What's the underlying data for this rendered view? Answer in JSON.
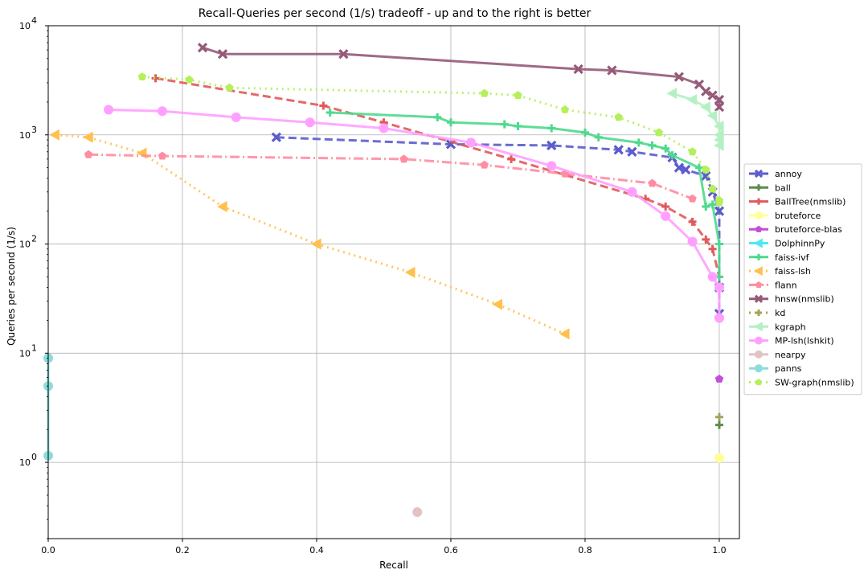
{
  "chart_data": {
    "type": "line",
    "title": "Recall-Queries per second (1/s) tradeoff - up and to the right is better",
    "xlabel": "Recall",
    "ylabel": "Queries per second (1/s)",
    "xlim": [
      0.0,
      1.03
    ],
    "ylim": [
      0.2,
      10000
    ],
    "yscale": "log",
    "grid": true,
    "legend_position": "right",
    "x_ticks": [
      "0.0",
      "0.2",
      "0.4",
      "0.6",
      "0.8",
      "1.0"
    ],
    "y_ticks": [
      {
        "base": "10",
        "exp": "0"
      },
      {
        "base": "10",
        "exp": "1"
      },
      {
        "base": "10",
        "exp": "2"
      },
      {
        "base": "10",
        "exp": "3"
      },
      {
        "base": "10",
        "exp": "4"
      }
    ],
    "series": [
      {
        "name": "annoy",
        "color": "#5a5ccc",
        "marker": "x",
        "dash": "dashed",
        "points": [
          [
            0.34,
            950
          ],
          [
            0.6,
            820
          ],
          [
            0.75,
            800
          ],
          [
            0.85,
            730
          ],
          [
            0.87,
            700
          ],
          [
            0.93,
            620
          ],
          [
            0.94,
            500
          ],
          [
            0.95,
            480
          ],
          [
            0.98,
            420
          ],
          [
            0.99,
            300
          ],
          [
            1.0,
            200
          ],
          [
            1.0,
            40
          ],
          [
            1.0,
            23
          ]
        ]
      },
      {
        "name": "ball",
        "color": "#5c8a4e",
        "marker": "plus",
        "dash": "solid",
        "points": [
          [
            1.0,
            2.2
          ]
        ]
      },
      {
        "name": "BallTree(nmslib)",
        "color": "#e05a5a",
        "marker": "plus",
        "dash": "dashed",
        "points": [
          [
            0.16,
            3300
          ],
          [
            0.41,
            1850
          ],
          [
            0.5,
            1300
          ],
          [
            0.69,
            600
          ],
          [
            0.89,
            260
          ],
          [
            0.92,
            220
          ],
          [
            0.96,
            160
          ],
          [
            0.98,
            110
          ],
          [
            0.99,
            90
          ],
          [
            1.0,
            50
          ]
        ]
      },
      {
        "name": "bruteforce",
        "color": "#ffff99",
        "marker": "circle",
        "dash": "solid",
        "points": [
          [
            1.0,
            1.1
          ]
        ]
      },
      {
        "name": "bruteforce-blas",
        "color": "#c24ed9",
        "marker": "pentagon",
        "dash": "dashed",
        "points": [
          [
            1.0,
            5.8
          ]
        ]
      },
      {
        "name": "DolphinnPy",
        "color": "#4ee9f0",
        "marker": "triangle",
        "dash": "solid",
        "points": []
      },
      {
        "name": "faiss-ivf",
        "color": "#4ed98c",
        "marker": "plus",
        "dash": "solid",
        "points": [
          [
            0.42,
            1600
          ],
          [
            0.58,
            1450
          ],
          [
            0.6,
            1300
          ],
          [
            0.68,
            1250
          ],
          [
            0.7,
            1200
          ],
          [
            0.75,
            1150
          ],
          [
            0.8,
            1050
          ],
          [
            0.82,
            950
          ],
          [
            0.88,
            850
          ],
          [
            0.9,
            800
          ],
          [
            0.92,
            750
          ],
          [
            0.93,
            650
          ],
          [
            0.97,
            500
          ],
          [
            0.98,
            220
          ],
          [
            0.99,
            230
          ],
          [
            1.0,
            100
          ],
          [
            1.0,
            50
          ]
        ]
      },
      {
        "name": "faiss-lsh",
        "color": "#ffc04e",
        "marker": "triangle",
        "dash": "dotted",
        "points": [
          [
            0.01,
            1000
          ],
          [
            0.06,
            950
          ],
          [
            0.14,
            680
          ],
          [
            0.26,
            220
          ],
          [
            0.4,
            100
          ],
          [
            0.54,
            55
          ],
          [
            0.67,
            28
          ],
          [
            0.77,
            15
          ]
        ]
      },
      {
        "name": "flann",
        "color": "#ff8ca0",
        "marker": "pentagon",
        "dash": "dashdot",
        "points": [
          [
            0.06,
            660
          ],
          [
            0.17,
            640
          ],
          [
            0.53,
            600
          ],
          [
            0.65,
            530
          ],
          [
            0.77,
            440
          ],
          [
            0.9,
            360
          ],
          [
            0.96,
            260
          ]
        ]
      },
      {
        "name": "hnsw(nmslib)",
        "color": "#945a78",
        "marker": "x",
        "dash": "solid",
        "points": [
          [
            0.23,
            6300
          ],
          [
            0.26,
            5500
          ],
          [
            0.44,
            5500
          ],
          [
            0.79,
            4000
          ],
          [
            0.84,
            3900
          ],
          [
            0.94,
            3400
          ],
          [
            0.97,
            2900
          ],
          [
            0.98,
            2500
          ],
          [
            0.99,
            2300
          ],
          [
            1.0,
            2100
          ],
          [
            1.0,
            1800
          ]
        ]
      },
      {
        "name": "kd",
        "color": "#a3a35a",
        "marker": "plus",
        "dash": "dotted",
        "points": [
          [
            1.0,
            2.6
          ]
        ]
      },
      {
        "name": "kgraph",
        "color": "#b4f0c4",
        "marker": "triangle",
        "dash": "solid",
        "points": [
          [
            0.93,
            2400
          ],
          [
            0.96,
            2100
          ],
          [
            0.98,
            1800
          ],
          [
            0.99,
            1500
          ],
          [
            1.0,
            1200
          ],
          [
            1.0,
            1000
          ],
          [
            1.0,
            900
          ],
          [
            1.0,
            800
          ]
        ]
      },
      {
        "name": "MP-lsh(lshkit)",
        "color": "#ffa0ff",
        "marker": "circle",
        "dash": "solid",
        "points": [
          [
            0.09,
            1700
          ],
          [
            0.17,
            1650
          ],
          [
            0.28,
            1450
          ],
          [
            0.39,
            1300
          ],
          [
            0.5,
            1150
          ],
          [
            0.63,
            850
          ],
          [
            0.75,
            520
          ],
          [
            0.87,
            300
          ],
          [
            0.92,
            180
          ],
          [
            0.96,
            105
          ],
          [
            0.99,
            50
          ],
          [
            1.0,
            40
          ],
          [
            1.0,
            21
          ]
        ]
      },
      {
        "name": "nearpy",
        "color": "#e0c4c4",
        "marker": "circle",
        "dash": "solid",
        "points": [
          [
            0.55,
            0.35
          ]
        ]
      },
      {
        "name": "panns",
        "color": "#8cdcdc",
        "marker": "circle",
        "dash": "solid",
        "points": [
          [
            0.0,
            9
          ],
          [
            0.0,
            5
          ],
          [
            0.0,
            1.15
          ]
        ]
      },
      {
        "name": "SW-graph(nmslib)",
        "color": "#b4f05a",
        "marker": "pentagon",
        "dash": "dotted",
        "points": [
          [
            0.14,
            3400
          ],
          [
            0.21,
            3200
          ],
          [
            0.27,
            2700
          ],
          [
            0.65,
            2400
          ],
          [
            0.7,
            2300
          ],
          [
            0.77,
            1700
          ],
          [
            0.85,
            1450
          ],
          [
            0.91,
            1050
          ],
          [
            0.96,
            700
          ],
          [
            0.98,
            480
          ],
          [
            0.99,
            320
          ],
          [
            1.0,
            250
          ],
          [
            1.0,
            240
          ]
        ]
      }
    ]
  }
}
